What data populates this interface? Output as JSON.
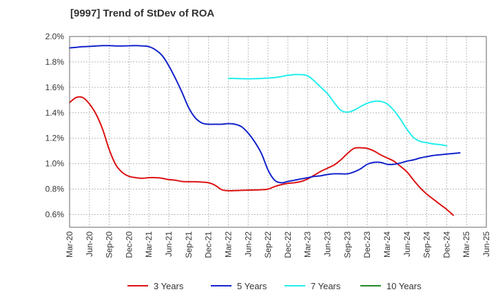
{
  "chart_data": {
    "type": "line",
    "title": "[9997]  Trend of StDev of ROA",
    "xlabel": "",
    "ylabel": "",
    "ylim": [
      0.5,
      2.0
    ],
    "yticks": [
      "0.6%",
      "0.8%",
      "1.0%",
      "1.2%",
      "1.4%",
      "1.6%",
      "1.8%",
      "2.0%"
    ],
    "ytick_values": [
      0.6,
      0.8,
      1.0,
      1.2,
      1.4,
      1.6,
      1.8,
      2.0
    ],
    "xticks": [
      "Mar-20",
      "Jun-20",
      "Sep-20",
      "Dec-20",
      "Mar-21",
      "Jun-21",
      "Sep-21",
      "Dec-21",
      "Mar-22",
      "Jun-22",
      "Sep-22",
      "Dec-22",
      "Mar-23",
      "Jun-23",
      "Sep-23",
      "Dec-23",
      "Mar-24",
      "Jun-24",
      "Sep-24",
      "Dec-24",
      "Mar-25",
      "Jun-25"
    ],
    "grid": true,
    "legend_position": "bottom",
    "series": [
      {
        "name": "3 Years",
        "color": "#dd1111",
        "start_index": 0,
        "values": [
          1.48,
          1.52,
          1.52,
          1.47,
          1.39,
          1.27,
          1.11,
          0.99,
          0.93,
          0.9,
          0.89,
          0.885,
          0.89,
          0.89,
          0.885,
          0.875,
          0.87,
          0.86,
          0.858,
          0.858,
          0.855,
          0.85,
          0.83,
          0.795,
          0.787,
          0.788,
          0.79,
          0.792,
          0.793,
          0.795,
          0.8,
          0.82,
          0.835,
          0.845,
          0.85,
          0.86,
          0.88,
          0.91,
          0.94,
          0.965,
          0.99,
          1.03,
          1.08,
          1.12,
          1.125,
          1.12,
          1.1,
          1.07,
          1.045,
          1.02,
          0.98,
          0.935,
          0.87,
          0.81,
          0.76,
          0.72,
          0.68,
          0.64,
          0.595
        ]
      },
      {
        "name": "5 Years",
        "color": "#1122cc",
        "start_index": 0,
        "values": [
          1.91,
          1.915,
          1.92,
          1.922,
          1.925,
          1.928,
          1.928,
          1.926,
          1.926,
          1.927,
          1.928,
          1.926,
          1.92,
          1.895,
          1.85,
          1.77,
          1.67,
          1.56,
          1.44,
          1.36,
          1.32,
          1.31,
          1.31,
          1.31,
          1.315,
          1.31,
          1.29,
          1.24,
          1.17,
          1.08,
          0.95,
          0.87,
          0.85,
          0.86,
          0.87,
          0.88,
          0.89,
          0.9,
          0.905,
          0.915,
          0.92,
          0.92,
          0.92,
          0.935,
          0.96,
          0.995,
          1.01,
          1.01,
          0.995,
          0.995,
          1.005,
          1.02,
          1.03,
          1.045,
          1.055,
          1.065,
          1.07,
          1.075,
          1.08,
          1.085
        ]
      },
      {
        "name": "7 Years",
        "color": "#22eeee",
        "start_index": 24,
        "values": [
          1.67,
          1.67,
          1.668,
          1.667,
          1.668,
          1.67,
          1.673,
          1.677,
          1.685,
          1.695,
          1.7,
          1.7,
          1.69,
          1.65,
          1.6,
          1.55,
          1.48,
          1.42,
          1.405,
          1.42,
          1.45,
          1.475,
          1.49,
          1.49,
          1.47,
          1.42,
          1.35,
          1.27,
          1.205,
          1.175,
          1.165,
          1.155,
          1.15,
          1.14
        ]
      },
      {
        "name": "10 Years",
        "color": "#228822",
        "start_index": 0,
        "values": []
      }
    ]
  }
}
